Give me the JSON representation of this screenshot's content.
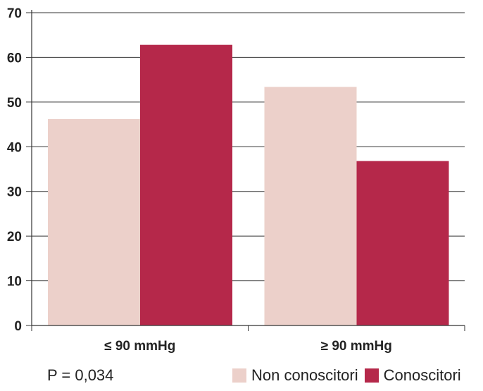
{
  "chart_data": {
    "type": "bar",
    "categories": [
      "≤ 90 mmHg",
      "≥ 90 mmHg"
    ],
    "series": [
      {
        "name": "Non conoscitori",
        "color": "#ecd0ca",
        "values": [
          46.2,
          53.4
        ]
      },
      {
        "name": "Conoscitori",
        "color": "#b5284a",
        "values": [
          62.8,
          36.8
        ]
      }
    ],
    "ylim": [
      0,
      70
    ],
    "yticks": [
      "0",
      "10",
      "20",
      "30",
      "40",
      "50",
      "60",
      "70"
    ],
    "grid": true,
    "legend_placement": "bottom-right",
    "annotation": "P = 0,034"
  }
}
